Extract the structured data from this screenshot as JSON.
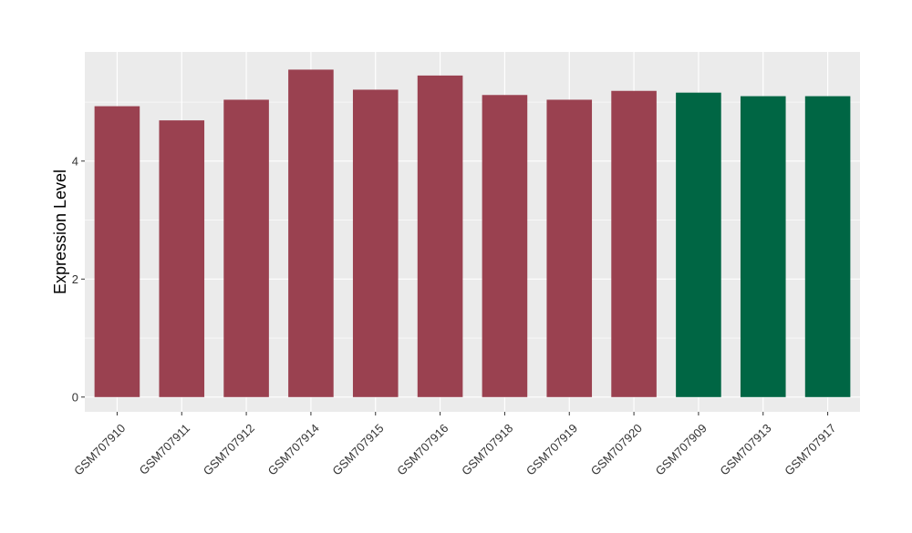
{
  "chart_data": {
    "type": "bar",
    "title": "",
    "xlabel": "",
    "ylabel": "Expression Level",
    "ylim": [
      -0.25,
      5.85
    ],
    "yticks": [
      0,
      2,
      4
    ],
    "grid": true,
    "legend": "none",
    "categories": [
      "GSM707910",
      "GSM707911",
      "GSM707912",
      "GSM707914",
      "GSM707915",
      "GSM707916",
      "GSM707918",
      "GSM707919",
      "GSM707920",
      "GSM707909",
      "GSM707913",
      "GSM707917"
    ],
    "values": [
      4.93,
      4.69,
      5.04,
      5.55,
      5.21,
      5.45,
      5.12,
      5.04,
      5.19,
      5.16,
      5.1,
      5.1
    ],
    "groups": [
      "a",
      "a",
      "a",
      "a",
      "a",
      "a",
      "a",
      "a",
      "a",
      "b",
      "b",
      "b"
    ],
    "group_colors": {
      "a": "#9a4150",
      "b": "#006644"
    },
    "panel_background": "#ebebeb",
    "gridline_color": "#ffffff"
  }
}
